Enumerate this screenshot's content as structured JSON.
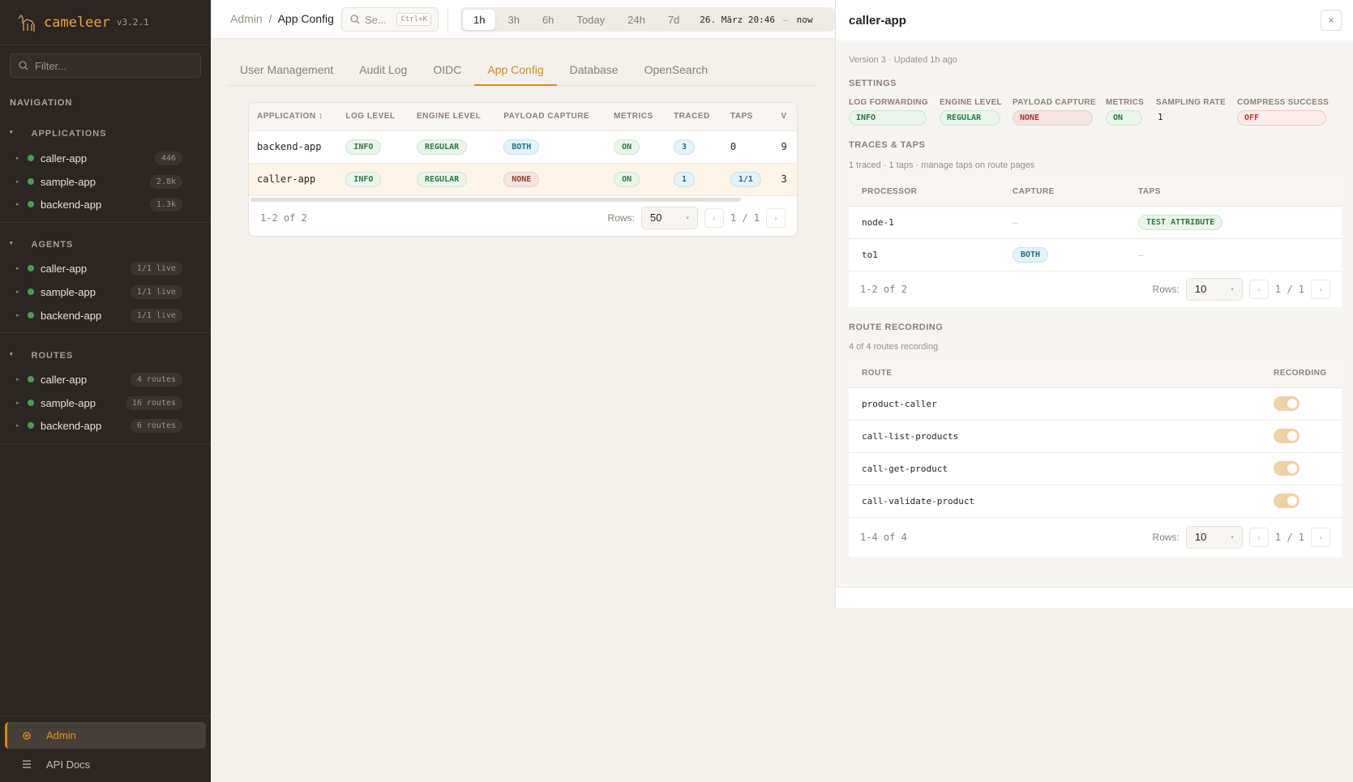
{
  "app": {
    "name": "cameleer",
    "version": "v3.2.1"
  },
  "sidebar": {
    "filter_placeholder": "Filter...",
    "nav_heading": "NAVIGATION",
    "sections": [
      {
        "title": "APPLICATIONS",
        "items": [
          {
            "label": "caller-app",
            "badge": "446"
          },
          {
            "label": "sample-app",
            "badge": "2.8k"
          },
          {
            "label": "backend-app",
            "badge": "1.3k"
          }
        ]
      },
      {
        "title": "AGENTS",
        "items": [
          {
            "label": "caller-app",
            "badge": "1/1 live"
          },
          {
            "label": "sample-app",
            "badge": "1/1 live"
          },
          {
            "label": "backend-app",
            "badge": "1/1 live"
          }
        ]
      },
      {
        "title": "ROUTES",
        "items": [
          {
            "label": "caller-app",
            "badge": "4 routes"
          },
          {
            "label": "sample-app",
            "badge": "16 routes"
          },
          {
            "label": "backend-app",
            "badge": "6 routes"
          }
        ]
      }
    ],
    "admin": "Admin",
    "api_docs": "API Docs"
  },
  "topbar": {
    "crumb_root": "Admin",
    "crumb_sep": "/",
    "crumb_current": "App Config",
    "search_label": "Se...",
    "search_kbd": "Ctrl+K",
    "ranges": [
      "1h",
      "3h",
      "6h",
      "Today",
      "24h",
      "7d"
    ],
    "active_range": "1h",
    "from": "26. März 20:46",
    "dash": "–",
    "to": "now"
  },
  "tabs": [
    "User Management",
    "Audit Log",
    "OIDC",
    "App Config",
    "Database",
    "OpenSearch"
  ],
  "active_tab": "App Config",
  "config_table": {
    "columns": [
      "APPLICATION ↕",
      "LOG LEVEL",
      "ENGINE LEVEL",
      "PAYLOAD CAPTURE",
      "METRICS",
      "TRACED",
      "TAPS",
      "V"
    ],
    "rows": [
      {
        "application": "backend-app",
        "log_level": "INFO",
        "engine_level": "REGULAR",
        "payload_capture": "BOTH",
        "metrics": "ON",
        "traced": "3",
        "taps": "0",
        "v": "9"
      },
      {
        "application": "caller-app",
        "log_level": "INFO",
        "engine_level": "REGULAR",
        "payload_capture": "NONE",
        "metrics": "ON",
        "traced": "1",
        "taps": "1/1",
        "v": "3"
      }
    ],
    "count": "1-2 of 2",
    "rows_label": "Rows:",
    "rows_value": "50",
    "page": "1 / 1"
  },
  "panel": {
    "title": "caller-app",
    "close": "×",
    "meta": "Version 3 · Updated 1h ago",
    "settings_title": "SETTINGS",
    "settings": [
      {
        "label": "LOG FORWARDING",
        "value": "INFO"
      },
      {
        "label": "ENGINE LEVEL",
        "value": "REGULAR"
      },
      {
        "label": "PAYLOAD CAPTURE",
        "value": "NONE"
      },
      {
        "label": "METRICS",
        "value": "ON"
      },
      {
        "label": "SAMPLING RATE",
        "value": "1"
      },
      {
        "label": "COMPRESS SUCCESS",
        "value": "OFF"
      }
    ],
    "traces_title": "TRACES & TAPS",
    "traces_meta": "1 traced · 1 taps · manage taps on route pages",
    "traces_columns": [
      "PROCESSOR",
      "CAPTURE",
      "TAPS"
    ],
    "traces_rows": [
      {
        "processor": "node-1",
        "capture": "—",
        "taps": "TEST ATTRIBUTE"
      },
      {
        "processor": "to1",
        "capture": "BOTH",
        "taps": "—"
      }
    ],
    "traces_count": "1-2 of 2",
    "traces_rows_value": "10",
    "traces_page": "1 / 1",
    "routes_title": "ROUTE RECORDING",
    "routes_meta": "4 of 4 routes recording",
    "routes_columns": [
      "ROUTE",
      "RECORDING"
    ],
    "routes": [
      {
        "name": "product-caller",
        "recording": true
      },
      {
        "name": "call-list-products",
        "recording": true
      },
      {
        "name": "call-get-product",
        "recording": true
      },
      {
        "name": "call-validate-product",
        "recording": true
      }
    ],
    "routes_count": "1-4 of 4",
    "routes_rows_value": "10",
    "routes_page": "1 / 1",
    "rows_label": "Rows:"
  },
  "colors": {
    "accent": "#d4881c",
    "sidebar_bg": "#2c2622",
    "status_green": "#4a9a55",
    "toggle_on": "#ecd2a4"
  }
}
